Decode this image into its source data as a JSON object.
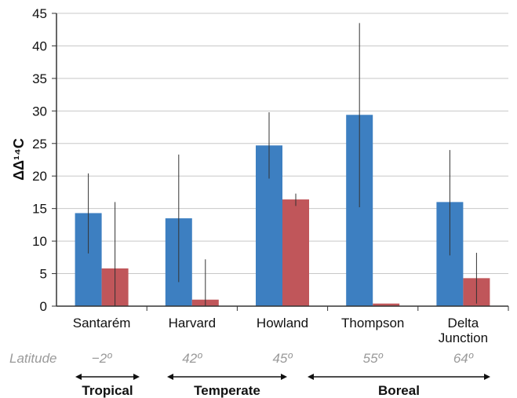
{
  "chart_data": {
    "type": "bar",
    "ylabel": "ΔΔ¹⁴C",
    "ylim": [
      0,
      45
    ],
    "yticks": [
      0,
      5,
      10,
      15,
      20,
      25,
      30,
      35,
      40,
      45
    ],
    "grid": true,
    "categories": [
      "Santarém",
      "Harvard",
      "Howland",
      "Thompson",
      "Delta\nJunction"
    ],
    "series": [
      {
        "color": "#3d7fc1",
        "values": [
          14.3,
          13.5,
          24.7,
          29.4,
          16.0
        ],
        "error_low": [
          8.1,
          3.7,
          19.6,
          15.2,
          7.8
        ],
        "error_high": [
          20.4,
          23.3,
          29.8,
          43.5,
          24.0
        ]
      },
      {
        "color": "#c0565a",
        "values": [
          5.8,
          1.0,
          16.4,
          0.4,
          4.3
        ],
        "error_low": [
          0.0,
          0.0,
          15.4,
          0.4,
          0.4
        ],
        "error_high": [
          16.0,
          7.2,
          17.3,
          0.4,
          8.2
        ]
      }
    ],
    "latitude": {
      "label": "Latitude",
      "values": [
        "−2º",
        "42º",
        "45º",
        "55º",
        "64º"
      ]
    },
    "zones": [
      "Tropical",
      "Temperate",
      "Boreal"
    ]
  }
}
